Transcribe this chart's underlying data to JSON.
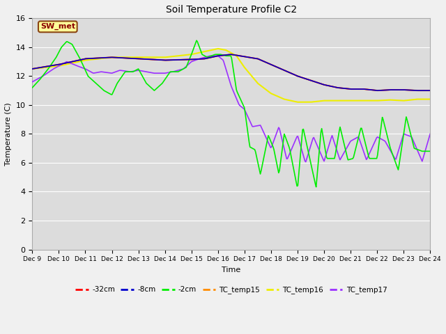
{
  "title": "Soil Temperature Profile C2",
  "xlabel": "Time",
  "ylabel": "Temperature (C)",
  "ylim": [
    0,
    16
  ],
  "yticks": [
    0,
    2,
    4,
    6,
    8,
    10,
    12,
    14,
    16
  ],
  "annotation_text": "SW_met",
  "annotation_color": "#8B0000",
  "annotation_bg": "#FFFF99",
  "fig_bg": "#F0F0F0",
  "plot_bg": "#DCDCDC",
  "colors": {
    "32cm": "#FF0000",
    "8cm": "#0000CD",
    "2cm": "#00EE00",
    "TC_temp15": "#FF8C00",
    "TC_temp16": "#EEEE00",
    "TC_temp17": "#9B30FF"
  },
  "legend_labels": [
    "-32cm",
    "-8cm",
    "-2cm",
    "TC_temp15",
    "TC_temp16",
    "TC_temp17"
  ],
  "TC_temp15_x": [
    0,
    1,
    2,
    3,
    4,
    5,
    6,
    6.5,
    7,
    7.5,
    8,
    8.5,
    9,
    9.5,
    10,
    10.5,
    11,
    11.5,
    12,
    12.5,
    13,
    13.5,
    14,
    14.5,
    15
  ],
  "TC_temp15_y": [
    12.5,
    12.8,
    13.2,
    13.3,
    13.2,
    13.1,
    13.15,
    13.2,
    13.4,
    13.5,
    13.35,
    13.2,
    12.8,
    12.4,
    12.0,
    11.7,
    11.4,
    11.2,
    11.1,
    11.1,
    11.0,
    11.05,
    11.05,
    11.0,
    11.0
  ],
  "TC_temp16_x": [
    0,
    1,
    2,
    3,
    4,
    5,
    6,
    7,
    7.3,
    7.7,
    8,
    8.5,
    9,
    9.5,
    10,
    10.5,
    11,
    11.5,
    12,
    12.5,
    13,
    13.5,
    14,
    14.5,
    15
  ],
  "TC_temp16_y": [
    12.5,
    12.7,
    13.1,
    13.3,
    13.3,
    13.3,
    13.5,
    13.9,
    13.8,
    13.4,
    12.6,
    11.5,
    10.8,
    10.4,
    10.2,
    10.2,
    10.3,
    10.3,
    10.3,
    10.3,
    10.3,
    10.35,
    10.3,
    10.4,
    10.4
  ],
  "TC_temp17_x": [
    0,
    0.4,
    0.8,
    1.1,
    1.3,
    1.7,
    2.0,
    2.3,
    2.6,
    3.0,
    3.3,
    3.7,
    4.0,
    4.3,
    4.6,
    5.0,
    5.3,
    5.7,
    6.0,
    6.3,
    6.7,
    7.0,
    7.2,
    7.5,
    7.8,
    8.0,
    8.3,
    8.6,
    9.0,
    9.3,
    9.6,
    10.0,
    10.3,
    10.6,
    11.0,
    11.3,
    11.6,
    12.0,
    12.3,
    12.6,
    13.0,
    13.3,
    13.7,
    14.0,
    14.3,
    14.7,
    15.0
  ],
  "TC_temp17_y": [
    11.6,
    12.0,
    12.5,
    12.8,
    13.0,
    12.7,
    12.5,
    12.2,
    12.3,
    12.2,
    12.4,
    12.3,
    12.4,
    12.3,
    12.2,
    12.2,
    12.3,
    12.5,
    13.0,
    13.2,
    13.4,
    13.4,
    13.1,
    11.3,
    10.0,
    9.7,
    8.5,
    8.6,
    7.0,
    8.5,
    6.2,
    7.9,
    6.0,
    7.8,
    6.1,
    7.9,
    6.2,
    7.5,
    7.8,
    6.2,
    7.8,
    7.5,
    6.2,
    8.0,
    7.8,
    6.1,
    8.0
  ],
  "cm2_x": [
    0,
    0.3,
    0.6,
    0.9,
    1.1,
    1.3,
    1.5,
    1.8,
    2.1,
    2.4,
    2.7,
    3.0,
    3.2,
    3.5,
    3.8,
    4.0,
    4.3,
    4.6,
    4.9,
    5.2,
    5.5,
    5.8,
    6.0,
    6.2,
    6.4,
    6.6,
    6.9,
    7.1,
    7.3,
    7.5,
    7.7,
    8.0,
    8.2,
    8.4,
    8.6,
    8.9,
    9.1,
    9.3,
    9.5,
    9.7,
    10.0,
    10.2,
    10.4,
    10.7,
    10.9,
    11.1,
    11.4,
    11.6,
    11.9,
    12.1,
    12.4,
    12.7,
    13.0,
    13.2,
    13.5,
    13.8,
    14.1,
    14.4,
    14.7,
    15.0
  ],
  "cm2_y": [
    11.2,
    11.8,
    12.5,
    13.3,
    14.0,
    14.4,
    14.2,
    13.2,
    12.0,
    11.5,
    11.0,
    10.7,
    11.5,
    12.3,
    12.3,
    12.5,
    11.5,
    11.0,
    11.5,
    12.3,
    12.3,
    12.6,
    13.5,
    14.5,
    13.5,
    13.3,
    13.5,
    13.5,
    13.4,
    13.4,
    11.0,
    9.8,
    7.1,
    6.9,
    5.2,
    7.9,
    7.0,
    5.2,
    8.0,
    7.0,
    4.2,
    8.5,
    6.8,
    4.3,
    8.5,
    6.3,
    6.3,
    8.5,
    6.2,
    6.3,
    8.5,
    6.3,
    6.3,
    9.2,
    7.0,
    5.5,
    9.2,
    7.0,
    6.8,
    6.8
  ]
}
